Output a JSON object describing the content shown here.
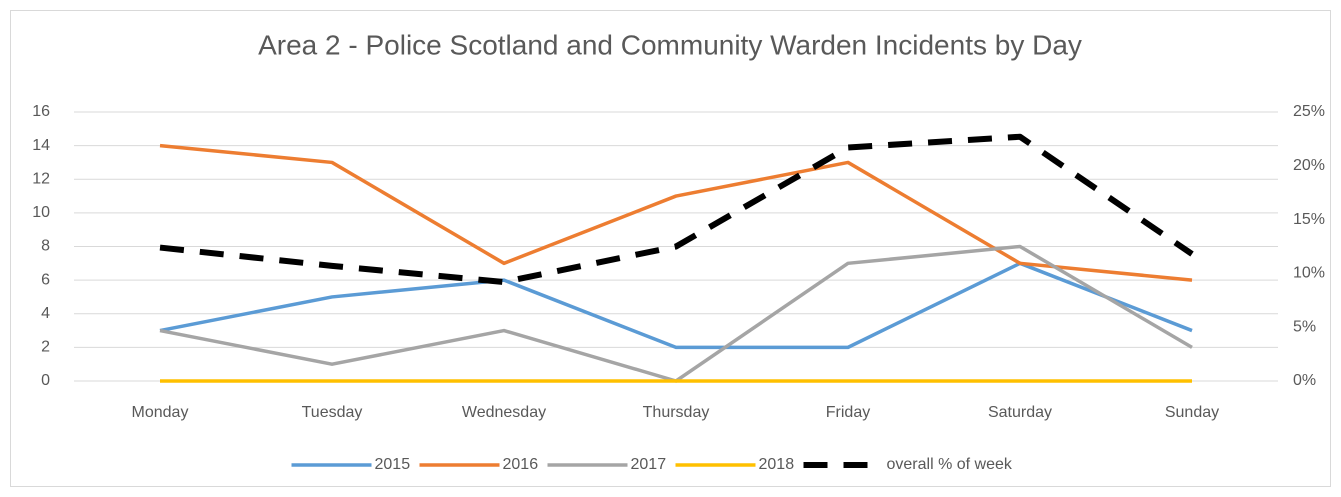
{
  "chart_data": {
    "type": "line",
    "title": "Area 2 - Police Scotland and Community Warden Incidents by Day",
    "categories": [
      "Monday",
      "Tuesday",
      "Wednesday",
      "Thursday",
      "Friday",
      "Saturday",
      "Sunday"
    ],
    "series": [
      {
        "name": "2015",
        "color": "#5b9bd5",
        "values": [
          3,
          5,
          6,
          2,
          2,
          7,
          3
        ]
      },
      {
        "name": "2016",
        "color": "#ed7d31",
        "values": [
          14,
          13,
          7,
          11,
          13,
          7,
          6
        ]
      },
      {
        "name": "2017",
        "color": "#a5a5a5",
        "values": [
          3,
          1,
          3,
          0,
          7,
          8,
          2
        ]
      },
      {
        "name": "2018",
        "color": "#ffc000",
        "values": [
          0,
          0,
          0,
          0,
          0,
          0,
          0
        ]
      },
      {
        "name": "overall % of week",
        "color": "#000000",
        "axis": "y2",
        "dashed": true,
        "values": [
          12.4,
          10.7,
          9.2,
          12.5,
          21.7,
          22.7,
          11.8
        ]
      }
    ],
    "ylim": [
      0,
      16
    ],
    "yticks": [
      0,
      2,
      4,
      6,
      8,
      10,
      12,
      14,
      16
    ],
    "y2lim": [
      0,
      25
    ],
    "y2ticks": [
      {
        "value": 0,
        "label": "0%"
      },
      {
        "value": 5,
        "label": "5%"
      },
      {
        "value": 10,
        "label": "10%"
      },
      {
        "value": 15,
        "label": "15%"
      },
      {
        "value": 20,
        "label": "20%"
      },
      {
        "value": 25,
        "label": "25%"
      }
    ],
    "grid": true,
    "legend": "bottom"
  }
}
